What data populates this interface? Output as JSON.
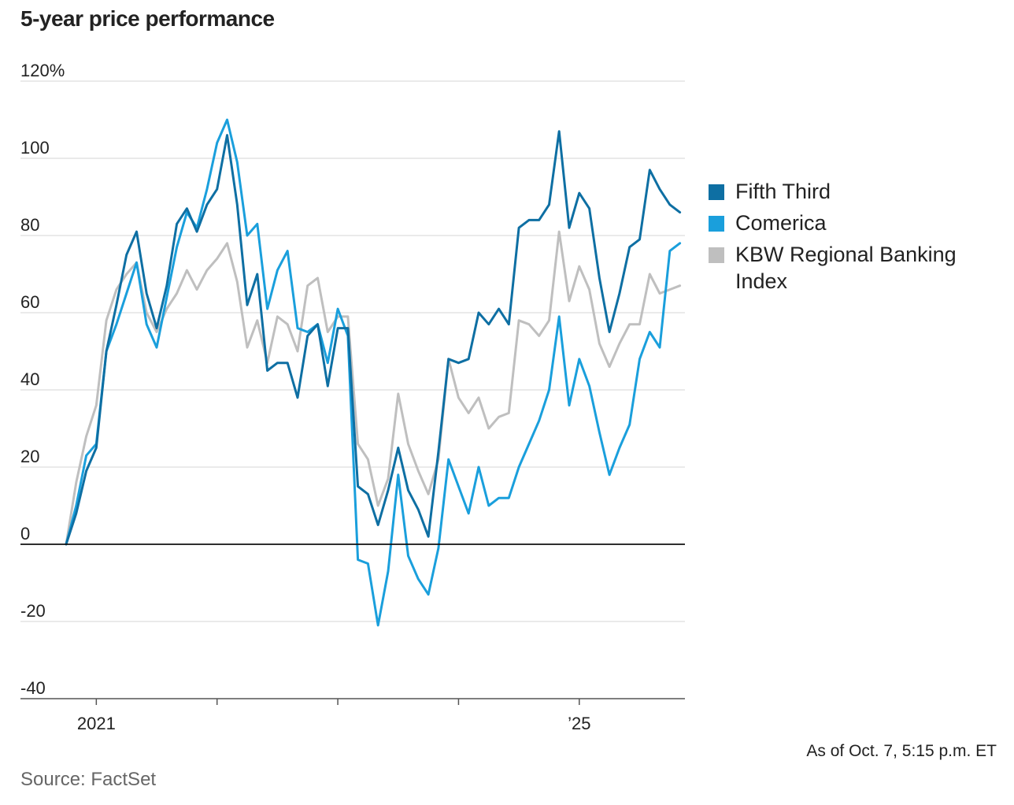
{
  "title": "5-year price performance",
  "chart_data": {
    "type": "line",
    "title": "5-year price performance",
    "ylabel": "",
    "xlabel": "",
    "ylim": [
      -40,
      120
    ],
    "y_ticks": [
      {
        "value": 120,
        "label": "120%"
      },
      {
        "value": 100,
        "label": "100"
      },
      {
        "value": 80,
        "label": "80"
      },
      {
        "value": 60,
        "label": "60"
      },
      {
        "value": 40,
        "label": "40"
      },
      {
        "value": 20,
        "label": "20"
      },
      {
        "value": 0,
        "label": "0"
      },
      {
        "value": -20,
        "label": "-20"
      },
      {
        "value": -40,
        "label": "-40"
      }
    ],
    "x_range": [
      0,
      61.5
    ],
    "x_ticks": [
      {
        "value": 3,
        "label": "2021"
      },
      {
        "value": 15,
        "label": ""
      },
      {
        "value": 27,
        "label": ""
      },
      {
        "value": 39,
        "label": ""
      },
      {
        "value": 51,
        "label": "’25"
      }
    ],
    "x": [
      0,
      1,
      2,
      3,
      4,
      5,
      6,
      7,
      8,
      9,
      10,
      11,
      12,
      13,
      14,
      15,
      16,
      17,
      18,
      19,
      20,
      21,
      22,
      23,
      24,
      25,
      26,
      27,
      28,
      29,
      30,
      31,
      32,
      33,
      34,
      35,
      36,
      37,
      38,
      39,
      40,
      41,
      42,
      43,
      44,
      45,
      46,
      47,
      48,
      49,
      50,
      51,
      52,
      53,
      54,
      55,
      56,
      57,
      58,
      59,
      60,
      61
    ],
    "series": [
      {
        "name": "Fifth Third",
        "color": "#0e6fa3",
        "values": [
          0,
          8,
          19,
          25,
          50,
          62,
          75,
          81,
          65,
          56,
          67,
          83,
          87,
          81,
          88,
          92,
          106,
          88,
          62,
          70,
          45,
          47,
          47,
          38,
          54,
          57,
          41,
          56,
          56,
          15,
          13,
          5,
          14,
          25,
          14,
          9,
          2,
          24,
          48,
          47,
          48,
          60,
          57,
          61,
          57,
          82,
          84,
          84,
          88,
          107,
          82,
          91,
          87,
          69,
          55,
          65,
          77,
          79,
          97,
          92,
          88,
          86
        ]
      },
      {
        "name": "Comerica",
        "color": "#1a9fdc",
        "values": [
          0,
          10,
          23,
          26,
          50,
          57,
          65,
          73,
          57,
          51,
          64,
          77,
          86,
          82,
          92,
          104,
          110,
          99,
          80,
          83,
          61,
          71,
          76,
          56,
          55,
          57,
          47,
          61,
          54,
          -4,
          -5,
          -21,
          -7,
          18,
          -3,
          -9,
          -13,
          -1,
          22,
          15,
          8,
          20,
          10,
          12,
          12,
          20,
          26,
          32,
          40,
          59,
          36,
          48,
          41,
          29,
          18,
          25,
          31,
          48,
          55,
          51,
          76,
          78
        ]
      },
      {
        "name": "KBW Regional Banking Index",
        "color": "#bfbfbf",
        "values": [
          0,
          16,
          28,
          36,
          58,
          66,
          70,
          73,
          60,
          55,
          61,
          65,
          71,
          66,
          71,
          74,
          78,
          68,
          51,
          58,
          47,
          59,
          57,
          50,
          67,
          69,
          55,
          59,
          59,
          26,
          22,
          10,
          17,
          39,
          26,
          19,
          13,
          22,
          48,
          38,
          34,
          38,
          30,
          33,
          34,
          58,
          57,
          54,
          58,
          81,
          63,
          72,
          66,
          52,
          46,
          52,
          57,
          57,
          70,
          65,
          66,
          67
        ]
      }
    ],
    "legend_position": "right"
  },
  "footer": {
    "as_of": "As of Oct. 7, 5:15 p.m. ET",
    "source": "Source: FactSet"
  }
}
